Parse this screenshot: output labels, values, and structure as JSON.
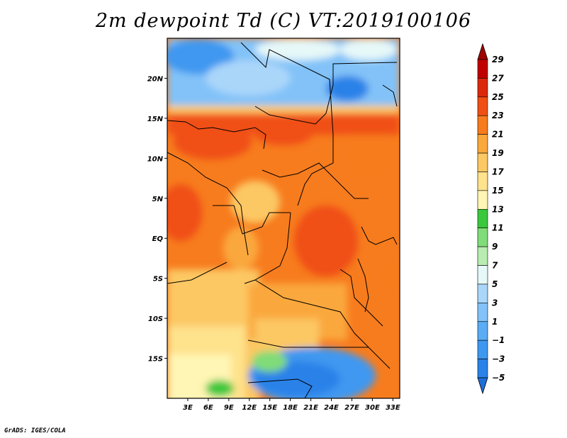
{
  "title": "2m dewpoint Td (C) VT:2019100106",
  "credit": "GrADS: IGES/COLA",
  "map": {
    "lon_range": [
      0,
      34
    ],
    "lat_range": [
      -20,
      25
    ],
    "lon_ticks": [
      {
        "value": 3,
        "label": "3E"
      },
      {
        "value": 6,
        "label": "6E"
      },
      {
        "value": 9,
        "label": "9E"
      },
      {
        "value": 12,
        "label": "12E"
      },
      {
        "value": 15,
        "label": "15E"
      },
      {
        "value": 18,
        "label": "18E"
      },
      {
        "value": 21,
        "label": "21E"
      },
      {
        "value": 24,
        "label": "24E"
      },
      {
        "value": 27,
        "label": "27E"
      },
      {
        "value": 30,
        "label": "30E"
      },
      {
        "value": 33,
        "label": "33E"
      }
    ],
    "lat_ticks": [
      {
        "value": 20,
        "label": "20N"
      },
      {
        "value": 15,
        "label": "15N"
      },
      {
        "value": 10,
        "label": "10N"
      },
      {
        "value": 5,
        "label": "5N"
      },
      {
        "value": 0,
        "label": "EQ"
      },
      {
        "value": -5,
        "label": "5S"
      },
      {
        "value": -10,
        "label": "10S"
      },
      {
        "value": -15,
        "label": "15S"
      }
    ]
  },
  "colorbar": {
    "labels": [
      "-5",
      "-3",
      "-1",
      "1",
      "3",
      "5",
      "7",
      "9",
      "11",
      "13",
      "15",
      "17",
      "19",
      "21",
      "23",
      "25",
      "27",
      "29"
    ],
    "colors": [
      "#1e6fd9",
      "#2a82e8",
      "#3f98f0",
      "#5aacf5",
      "#82c2f8",
      "#aad6fa",
      "#e6f8f8",
      "#b8ecb0",
      "#80dc78",
      "#3cc83c",
      "#fff5b4",
      "#fee28c",
      "#fcc864",
      "#faa83c",
      "#f77c1e",
      "#f05014",
      "#dc280a",
      "#c00000",
      "#a00000"
    ]
  }
}
